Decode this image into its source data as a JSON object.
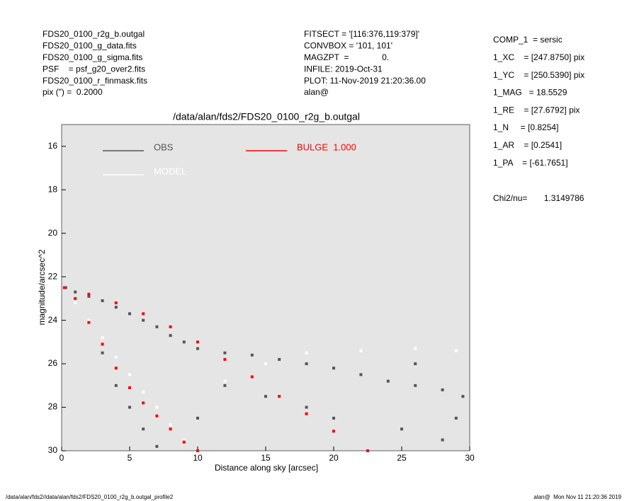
{
  "header": {
    "left": [
      "FDS20_0100_r2g_b.outgal",
      "FDS20_0100_g_data.fits",
      "FDS20_0100_g_sigma.fits",
      "PSF    = psf_g20_over2.fits",
      "FDS20_0100_r_finmask.fits",
      "pix (\") =  0.2000"
    ],
    "middle": [
      "FITSECT = '[116:376,119:379]'",
      "CONVBOX = '101, 101'",
      "MAGZPT  =              0.",
      "INFILE: 2019-Oct-31",
      "PLOT: 11-Nov-2019 21:20:36.00",
      "alan@"
    ],
    "right": [
      "COMP_1  = sersic",
      "1_XC    = [247.8750] pix",
      "1_YC    = [250.5390] pix",
      "1_MAG   = 18.5529",
      "1_RE    = [27.6792] pix",
      "1_N     = [0.8254]",
      "1_AR    = [0.2541]",
      "1_PA    = [-61.7651]"
    ],
    "chi2": "Chi2/nu=       1.3149786"
  },
  "footer": {
    "left": "/data/alan/fds2//data/alan/fds2/FDS20_0100_r2g_b.outgal_profile2",
    "right": "alan@  Mon Nov 11 21:20:36 2019"
  },
  "chart_data": {
    "type": "scatter",
    "title": "/data/alan/fds2/FDS20_0100_r2g_b.outgal",
    "x_label": "Distance along sky [arcsec]",
    "y_label": "magnitude/arcsec^2",
    "xlim": [
      0,
      30
    ],
    "ylim": [
      30,
      15
    ],
    "xticks": [
      0,
      5,
      10,
      15,
      20,
      25,
      30
    ],
    "yticks": [
      16,
      18,
      20,
      22,
      24,
      26,
      28,
      30
    ],
    "background": "#e5e5e5",
    "series": [
      {
        "name": "OBS",
        "color": "#555555",
        "x": [
          0.3,
          1,
          2,
          3,
          4,
          5,
          6,
          7,
          8,
          9,
          10,
          12,
          14,
          16,
          18,
          20,
          22,
          24,
          26,
          28,
          29.5,
          3,
          4,
          5,
          6,
          7,
          15,
          20,
          25,
          28,
          12,
          18,
          26,
          29,
          10
        ],
        "values": [
          22.5,
          22.7,
          22.9,
          23.1,
          23.4,
          23.7,
          24.0,
          24.3,
          24.7,
          25.0,
          25.3,
          25.5,
          25.6,
          25.8,
          26.0,
          26.2,
          26.5,
          26.8,
          27.0,
          27.2,
          27.5,
          25.5,
          27,
          28,
          29,
          29.8,
          27.5,
          28.5,
          29,
          29.5,
          27,
          28,
          26,
          28.5,
          28.5
        ]
      },
      {
        "name": "MODEL",
        "color": "#ffffff",
        "x": [
          1,
          2,
          3,
          4,
          5,
          6,
          7,
          8,
          9,
          12,
          15,
          18,
          22,
          26,
          29
        ],
        "values": [
          23.2,
          24.0,
          24.8,
          25.7,
          26.5,
          27.3,
          28.0,
          28.8,
          29.5,
          26.8,
          26,
          25.5,
          25.4,
          25.3,
          25.4
        ]
      },
      {
        "name": "BULGE  1.000",
        "color": "#ff0000",
        "x": [
          0.2,
          1,
          2,
          3,
          4,
          5,
          6,
          7,
          8,
          9,
          10,
          2,
          4,
          6,
          8,
          10,
          12,
          14,
          16,
          18,
          20,
          22.5
        ],
        "values": [
          22.5,
          23,
          24.1,
          25.1,
          26.2,
          27.1,
          27.8,
          28.4,
          29.0,
          29.6,
          30,
          22.8,
          23.2,
          23.7,
          24.3,
          25.0,
          25.8,
          26.6,
          27.5,
          28.3,
          29.1,
          30
        ]
      }
    ]
  }
}
